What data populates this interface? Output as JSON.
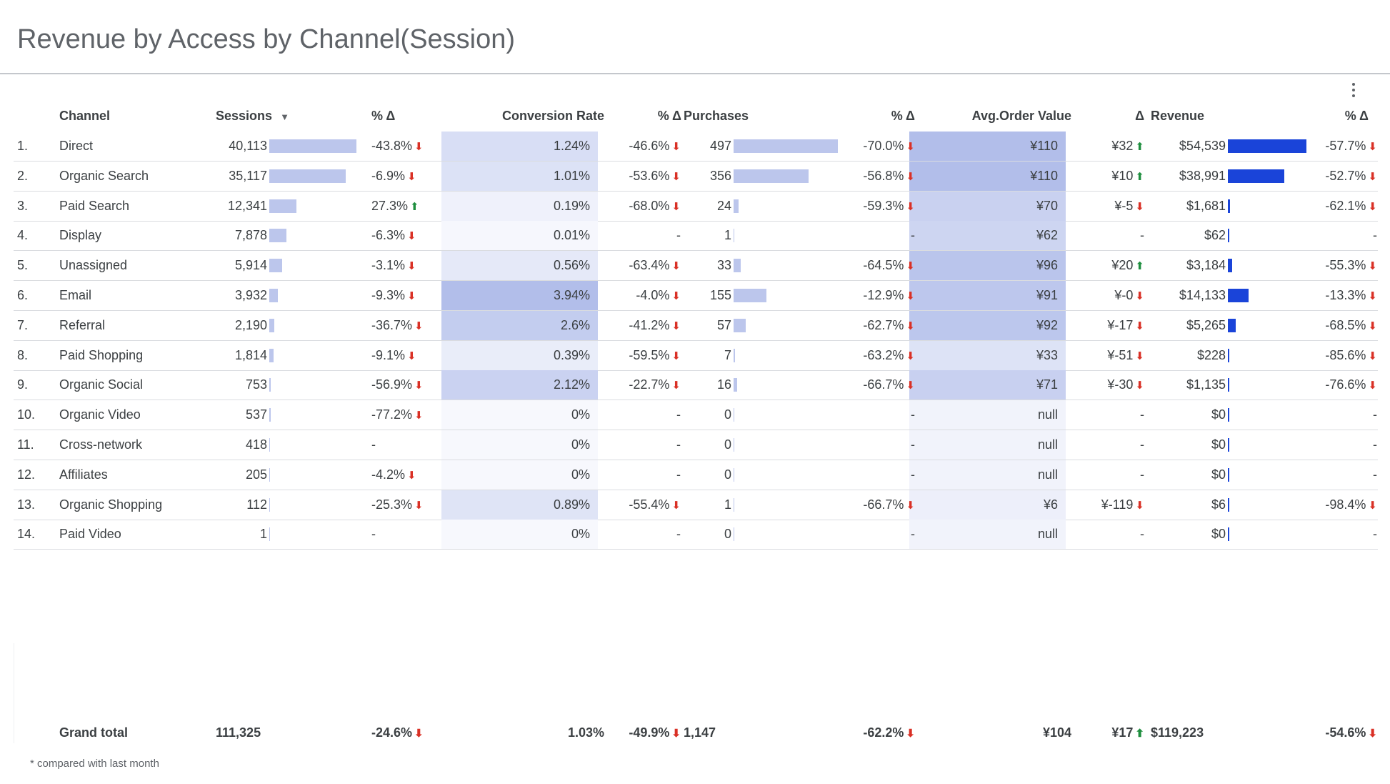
{
  "title": "Revenue by Access by Channel(Session)",
  "menu_icon": "more-vert-icon",
  "colors": {
    "bar_light": "#bcc6ec",
    "bar_dark": "#1a44d9",
    "up": "#1e8e3e",
    "down": "#d93025"
  },
  "headers": {
    "channel": "Channel",
    "sessions": "Sessions",
    "sessions_pct": "% Δ",
    "conversion_rate": "Conversion Rate",
    "conversion_pct": "% Δ",
    "purchases": "Purchases",
    "purchases_pct": "% Δ",
    "aov": "Avg.Order Value",
    "aov_delta": "Δ",
    "revenue": "Revenue",
    "revenue_pct": "% Δ"
  },
  "sort": {
    "column": "Sessions",
    "direction": "descending"
  },
  "rows": [
    {
      "idx": "1.",
      "channel": "Direct",
      "sessions": "40,113",
      "s_num": 40113,
      "s_pct": "-43.8%",
      "s_dir": "down",
      "cr": "1.24%",
      "cr_num": 1.24,
      "cr_pct": "-46.6%",
      "cr_dir": "down",
      "pur": "497",
      "p_num": 497,
      "p_pct": "-70.0%",
      "p_dir": "down",
      "aov": "¥110",
      "aov_num": 110,
      "aov_d": "¥32",
      "aov_dir": "up",
      "rev": "$54,539",
      "r_num": 54539,
      "r_pct": "-57.7%",
      "r_dir": "down"
    },
    {
      "idx": "2.",
      "channel": "Organic Search",
      "sessions": "35,117",
      "s_num": 35117,
      "s_pct": "-6.9%",
      "s_dir": "down",
      "cr": "1.01%",
      "cr_num": 1.01,
      "cr_pct": "-53.6%",
      "cr_dir": "down",
      "pur": "356",
      "p_num": 356,
      "p_pct": "-56.8%",
      "p_dir": "down",
      "aov": "¥110",
      "aov_num": 110,
      "aov_d": "¥10",
      "aov_dir": "up",
      "rev": "$38,991",
      "r_num": 38991,
      "r_pct": "-52.7%",
      "r_dir": "down"
    },
    {
      "idx": "3.",
      "channel": "Paid Search",
      "sessions": "12,341",
      "s_num": 12341,
      "s_pct": "27.3%",
      "s_dir": "up",
      "cr": "0.19%",
      "cr_num": 0.19,
      "cr_pct": "-68.0%",
      "cr_dir": "down",
      "pur": "24",
      "p_num": 24,
      "p_pct": "-59.3%",
      "p_dir": "down",
      "aov": "¥70",
      "aov_num": 70,
      "aov_d": "¥-5",
      "aov_dir": "down",
      "rev": "$1,681",
      "r_num": 1681,
      "r_pct": "-62.1%",
      "r_dir": "down"
    },
    {
      "idx": "4.",
      "channel": "Display",
      "sessions": "7,878",
      "s_num": 7878,
      "s_pct": "-6.3%",
      "s_dir": "down",
      "cr": "0.01%",
      "cr_num": 0.01,
      "cr_pct": "-",
      "cr_dir": "",
      "pur": "1",
      "p_num": 1,
      "p_pct": "-",
      "p_dir": "",
      "aov": "¥62",
      "aov_num": 62,
      "aov_d": "-",
      "aov_dir": "",
      "rev": "$62",
      "r_num": 62,
      "r_pct": "-",
      "r_dir": ""
    },
    {
      "idx": "5.",
      "channel": "Unassigned",
      "sessions": "5,914",
      "s_num": 5914,
      "s_pct": "-3.1%",
      "s_dir": "down",
      "cr": "0.56%",
      "cr_num": 0.56,
      "cr_pct": "-63.4%",
      "cr_dir": "down",
      "pur": "33",
      "p_num": 33,
      "p_pct": "-64.5%",
      "p_dir": "down",
      "aov": "¥96",
      "aov_num": 96,
      "aov_d": "¥20",
      "aov_dir": "up",
      "rev": "$3,184",
      "r_num": 3184,
      "r_pct": "-55.3%",
      "r_dir": "down"
    },
    {
      "idx": "6.",
      "channel": "Email",
      "sessions": "3,932",
      "s_num": 3932,
      "s_pct": "-9.3%",
      "s_dir": "down",
      "cr": "3.94%",
      "cr_num": 3.94,
      "cr_pct": "-4.0%",
      "cr_dir": "down",
      "pur": "155",
      "p_num": 155,
      "p_pct": "-12.9%",
      "p_dir": "down",
      "aov": "¥91",
      "aov_num": 91,
      "aov_d": "¥-0",
      "aov_dir": "down",
      "rev": "$14,133",
      "r_num": 14133,
      "r_pct": "-13.3%",
      "r_dir": "down"
    },
    {
      "idx": "7.",
      "channel": "Referral",
      "sessions": "2,190",
      "s_num": 2190,
      "s_pct": "-36.7%",
      "s_dir": "down",
      "cr": "2.6%",
      "cr_num": 2.6,
      "cr_pct": "-41.2%",
      "cr_dir": "down",
      "pur": "57",
      "p_num": 57,
      "p_pct": "-62.7%",
      "p_dir": "down",
      "aov": "¥92",
      "aov_num": 92,
      "aov_d": "¥-17",
      "aov_dir": "down",
      "rev": "$5,265",
      "r_num": 5265,
      "r_pct": "-68.5%",
      "r_dir": "down"
    },
    {
      "idx": "8.",
      "channel": "Paid Shopping",
      "sessions": "1,814",
      "s_num": 1814,
      "s_pct": "-9.1%",
      "s_dir": "down",
      "cr": "0.39%",
      "cr_num": 0.39,
      "cr_pct": "-59.5%",
      "cr_dir": "down",
      "pur": "7",
      "p_num": 7,
      "p_pct": "-63.2%",
      "p_dir": "down",
      "aov": "¥33",
      "aov_num": 33,
      "aov_d": "¥-51",
      "aov_dir": "down",
      "rev": "$228",
      "r_num": 228,
      "r_pct": "-85.6%",
      "r_dir": "down"
    },
    {
      "idx": "9.",
      "channel": "Organic Social",
      "sessions": "753",
      "s_num": 753,
      "s_pct": "-56.9%",
      "s_dir": "down",
      "cr": "2.12%",
      "cr_num": 2.12,
      "cr_pct": "-22.7%",
      "cr_dir": "down",
      "pur": "16",
      "p_num": 16,
      "p_pct": "-66.7%",
      "p_dir": "down",
      "aov": "¥71",
      "aov_num": 71,
      "aov_d": "¥-30",
      "aov_dir": "down",
      "rev": "$1,135",
      "r_num": 1135,
      "r_pct": "-76.6%",
      "r_dir": "down"
    },
    {
      "idx": "10.",
      "channel": "Organic Video",
      "sessions": "537",
      "s_num": 537,
      "s_pct": "-77.2%",
      "s_dir": "down",
      "cr": "0%",
      "cr_num": 0,
      "cr_pct": "-",
      "cr_dir": "",
      "pur": "0",
      "p_num": 0,
      "p_pct": "-",
      "p_dir": "",
      "aov": "null",
      "aov_num": 0,
      "aov_d": "-",
      "aov_dir": "",
      "rev": "$0",
      "r_num": 0,
      "r_pct": "-",
      "r_dir": ""
    },
    {
      "idx": "11.",
      "channel": "Cross-network",
      "sessions": "418",
      "s_num": 418,
      "s_pct": "-",
      "s_dir": "",
      "cr": "0%",
      "cr_num": 0,
      "cr_pct": "-",
      "cr_dir": "",
      "pur": "0",
      "p_num": 0,
      "p_pct": "-",
      "p_dir": "",
      "aov": "null",
      "aov_num": 0,
      "aov_d": "-",
      "aov_dir": "",
      "rev": "$0",
      "r_num": 0,
      "r_pct": "-",
      "r_dir": ""
    },
    {
      "idx": "12.",
      "channel": "Affiliates",
      "sessions": "205",
      "s_num": 205,
      "s_pct": "-4.2%",
      "s_dir": "down",
      "cr": "0%",
      "cr_num": 0,
      "cr_pct": "-",
      "cr_dir": "",
      "pur": "0",
      "p_num": 0,
      "p_pct": "-",
      "p_dir": "",
      "aov": "null",
      "aov_num": 0,
      "aov_d": "-",
      "aov_dir": "",
      "rev": "$0",
      "r_num": 0,
      "r_pct": "-",
      "r_dir": ""
    },
    {
      "idx": "13.",
      "channel": "Organic Shopping",
      "sessions": "112",
      "s_num": 112,
      "s_pct": "-25.3%",
      "s_dir": "down",
      "cr": "0.89%",
      "cr_num": 0.89,
      "cr_pct": "-55.4%",
      "cr_dir": "down",
      "pur": "1",
      "p_num": 1,
      "p_pct": "-66.7%",
      "p_dir": "down",
      "aov": "¥6",
      "aov_num": 6,
      "aov_d": "¥-119",
      "aov_dir": "down",
      "rev": "$6",
      "r_num": 6,
      "r_pct": "-98.4%",
      "r_dir": "down"
    },
    {
      "idx": "14.",
      "channel": "Paid Video",
      "sessions": "1",
      "s_num": 1,
      "s_pct": "-",
      "s_dir": "",
      "cr": "0%",
      "cr_num": 0,
      "cr_pct": "-",
      "cr_dir": "",
      "pur": "0",
      "p_num": 0,
      "p_pct": "-",
      "p_dir": "",
      "aov": "null",
      "aov_num": 0,
      "aov_d": "-",
      "aov_dir": "",
      "rev": "$0",
      "r_num": 0,
      "r_pct": "-",
      "r_dir": ""
    }
  ],
  "total": {
    "label": "Grand total",
    "sessions": "111,325",
    "s_pct": "-24.6%",
    "s_dir": "down",
    "cr": "1.03%",
    "cr_pct": "-49.9%",
    "cr_dir": "down",
    "pur": "1,147",
    "p_pct": "-62.2%",
    "p_dir": "down",
    "aov": "¥104",
    "aov_d": "¥17",
    "aov_dir": "up",
    "rev": "$119,223",
    "r_pct": "-54.6%",
    "r_dir": "down"
  },
  "footnote": "* compared with last month"
}
